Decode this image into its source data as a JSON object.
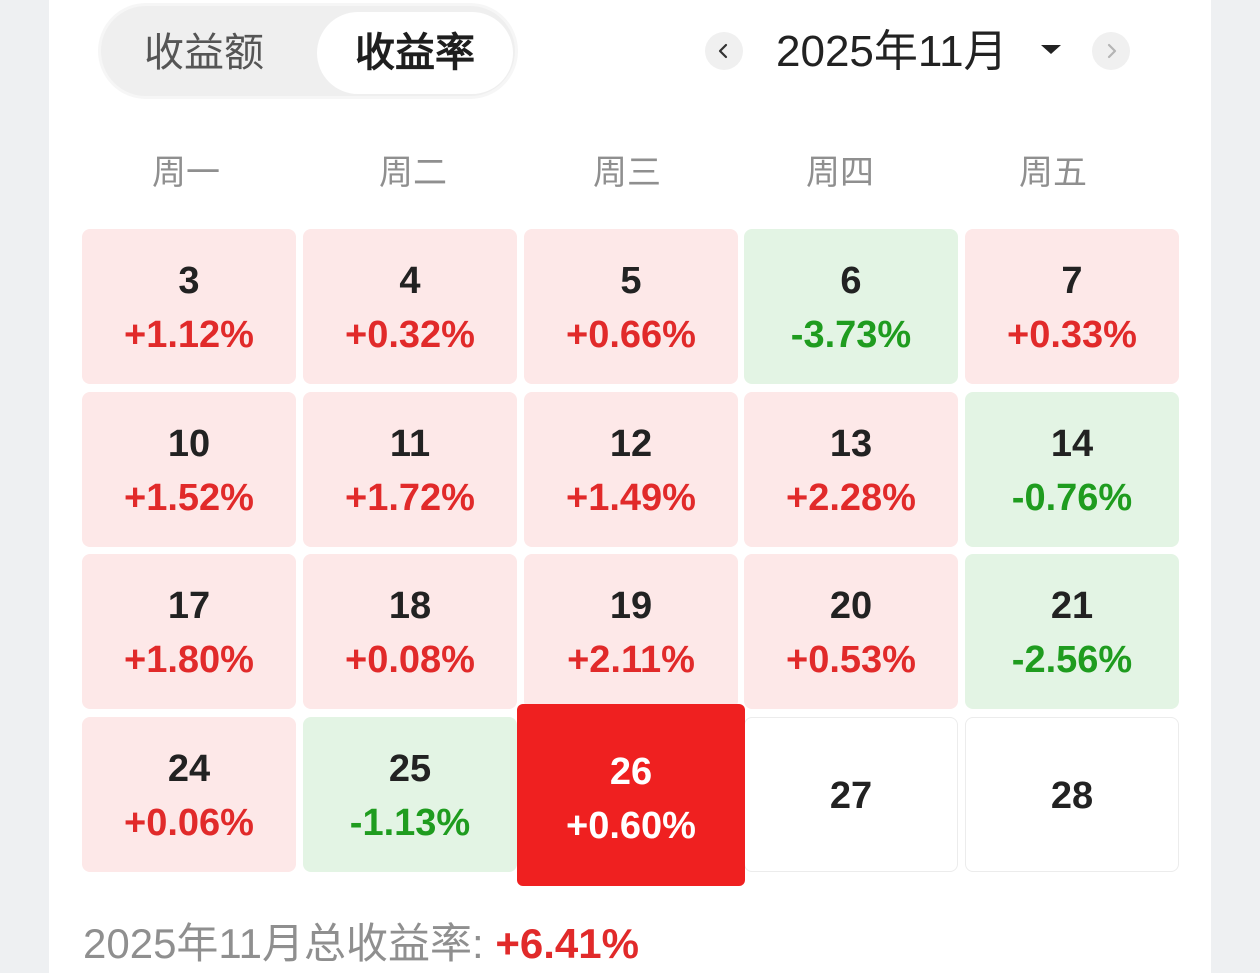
{
  "toggle": {
    "options": [
      "收益额",
      "收益率"
    ],
    "active": "收益率"
  },
  "month_nav": {
    "label": "2025年11月",
    "prev_icon": "chevron-left-icon",
    "next_icon": "chevron-right-icon",
    "dropdown_icon": "caret-down-icon"
  },
  "weekdays": [
    "周一",
    "周二",
    "周三",
    "周四",
    "周五"
  ],
  "weeks": [
    [
      {
        "day": "3",
        "pct": "+1.12%",
        "trend": "up"
      },
      {
        "day": "4",
        "pct": "+0.32%",
        "trend": "up"
      },
      {
        "day": "5",
        "pct": "+0.66%",
        "trend": "up"
      },
      {
        "day": "6",
        "pct": "-3.73%",
        "trend": "down"
      },
      {
        "day": "7",
        "pct": "+0.33%",
        "trend": "up"
      }
    ],
    [
      {
        "day": "10",
        "pct": "+1.52%",
        "trend": "up"
      },
      {
        "day": "11",
        "pct": "+1.72%",
        "trend": "up"
      },
      {
        "day": "12",
        "pct": "+1.49%",
        "trend": "up"
      },
      {
        "day": "13",
        "pct": "+2.28%",
        "trend": "up"
      },
      {
        "day": "14",
        "pct": "-0.76%",
        "trend": "down"
      }
    ],
    [
      {
        "day": "17",
        "pct": "+1.80%",
        "trend": "up"
      },
      {
        "day": "18",
        "pct": "+0.08%",
        "trend": "up"
      },
      {
        "day": "19",
        "pct": "+2.11%",
        "trend": "up"
      },
      {
        "day": "20",
        "pct": "+0.53%",
        "trend": "up"
      },
      {
        "day": "21",
        "pct": "-2.56%",
        "trend": "down"
      }
    ],
    [
      {
        "day": "24",
        "pct": "+0.06%",
        "trend": "up"
      },
      {
        "day": "25",
        "pct": "-1.13%",
        "trend": "down"
      },
      {
        "day": "26",
        "pct": "+0.60%",
        "trend": "selected"
      },
      {
        "day": "27",
        "pct": "",
        "trend": "none"
      },
      {
        "day": "28",
        "pct": "",
        "trend": "none"
      }
    ]
  ],
  "total": {
    "label": "2025年11月总收益率: ",
    "value": "+6.41%"
  },
  "colors": {
    "gain_text": "#e12a2a",
    "loss_text": "#1f9c1f",
    "gain_bg": "#fde8e8",
    "loss_bg": "#e3f4e4",
    "selected_bg": "#ef2020"
  }
}
